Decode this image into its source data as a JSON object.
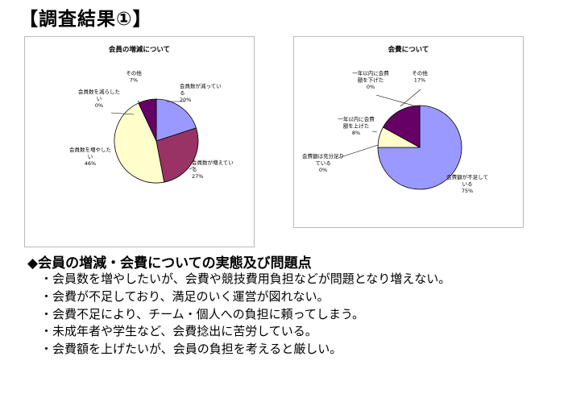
{
  "page": {
    "title": "【調査結果①】",
    "section_heading": "◆会員の増減・会費についての実態及び問題点",
    "points": [
      "・会員数を増やしたいが、会費や競技費用負担などが問題となり増えない。",
      "・会費が不足しており、満足のいく運営が図れない。",
      "・会費不足により、チーム・個人への負担に頼ってしまう。",
      "・未成年者や学生など、会費捻出に苦労している。",
      "・会費額を上げたいが、会員の負担を考えると厳しい。"
    ]
  },
  "chart_data": [
    {
      "type": "pie",
      "title": "会員の増減について",
      "slices": [
        {
          "label_lines": [
            "会員数が減ってい",
            "る"
          ],
          "value": 20,
          "value_label": "20%",
          "color": "#9999ff"
        },
        {
          "label_lines": [
            "会員数が増えてい",
            "る"
          ],
          "value": 27,
          "value_label": "27%",
          "color": "#993366"
        },
        {
          "label_lines": [
            "会員数を増やした",
            "い"
          ],
          "value": 46,
          "value_label": "46%",
          "color": "#ffffcc"
        },
        {
          "label_lines": [
            "会員数を減らした",
            "い"
          ],
          "value": 0,
          "value_label": "0%",
          "color": "#ccffff"
        },
        {
          "label_lines": [
            "その他"
          ],
          "value": 7,
          "value_label": "7%",
          "color": "#660066"
        }
      ]
    },
    {
      "type": "pie",
      "title": "会費について",
      "slices": [
        {
          "label_lines": [
            "会費額が不足して",
            "いる"
          ],
          "value": 75,
          "value_label": "75%",
          "color": "#9999ff"
        },
        {
          "label_lines": [
            "会費額は充分足り",
            "ている"
          ],
          "value": 0,
          "value_label": "0%",
          "color": "#993366"
        },
        {
          "label_lines": [
            "一年以内に会費",
            "額を上げた"
          ],
          "value": 8,
          "value_label": "8%",
          "color": "#ffffcc"
        },
        {
          "label_lines": [
            "一年以内に会費",
            "額を下げた"
          ],
          "value": 0,
          "value_label": "0%",
          "color": "#ccffff"
        },
        {
          "label_lines": [
            "その他"
          ],
          "value": 17,
          "value_label": "17%",
          "color": "#660066"
        }
      ]
    }
  ]
}
